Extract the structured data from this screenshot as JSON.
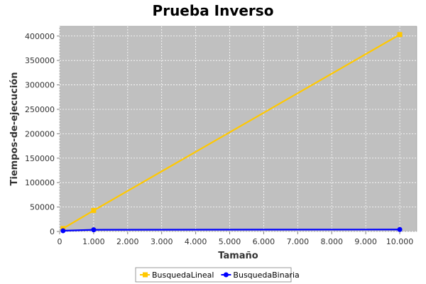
{
  "chart_data": {
    "type": "line",
    "title": "Prueba Inverso",
    "xlabel": "Tamaño",
    "ylabel": "Tiempos-de-ejecución",
    "xlim": [
      0,
      10500
    ],
    "ylim": [
      0,
      420000
    ],
    "x_ticks": [
      0,
      1000,
      2000,
      3000,
      4000,
      5000,
      6000,
      7000,
      8000,
      9000,
      10000
    ],
    "x_tick_labels": [
      "0",
      "1.000",
      "2.000",
      "3.000",
      "4.000",
      "5.000",
      "6.000",
      "7.000",
      "8.000",
      "9.000",
      "10.000"
    ],
    "y_ticks": [
      0,
      50000,
      100000,
      150000,
      200000,
      250000,
      300000,
      350000,
      400000
    ],
    "y_tick_labels": [
      "0",
      "50000",
      "100000",
      "150000",
      "200000",
      "250000",
      "300000",
      "350000",
      "400000"
    ],
    "grid": true,
    "plot_background": "#c0c0c0",
    "legend_position": "bottom",
    "series": [
      {
        "name": "BusquedaLineal",
        "color": "#ffc800",
        "marker": "square",
        "x": [
          100,
          1000,
          10000
        ],
        "y": [
          6000,
          43000,
          403000
        ]
      },
      {
        "name": "BusquedaBinaria",
        "color": "#0000ff",
        "marker": "circle",
        "x": [
          100,
          1000,
          10000
        ],
        "y": [
          1500,
          3500,
          4000
        ]
      }
    ]
  }
}
